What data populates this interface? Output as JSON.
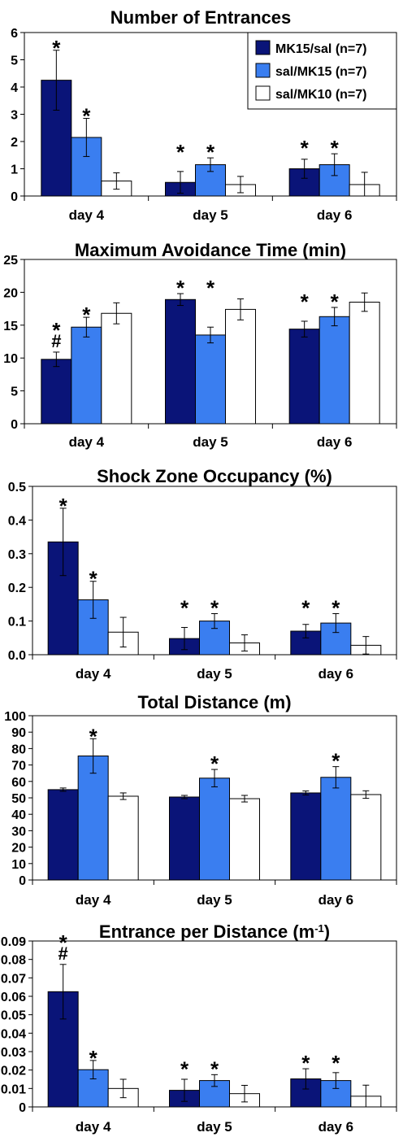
{
  "colors": {
    "MK15/sal": "#0a1478",
    "sal/MK15": "#3a7ef0",
    "sal/MK10": "#ffffff"
  },
  "legend": {
    "items": [
      {
        "label": "MK15/sal (n=7)",
        "color": "#0a1478"
      },
      {
        "label": "sal/MK15 (n=7)",
        "color": "#3a7ef0"
      },
      {
        "label": "sal/MK10 (n=7)",
        "color": "#ffffff"
      }
    ]
  },
  "chart_data": [
    {
      "type": "bar",
      "title": "Number of Entrances",
      "categories": [
        "day 4",
        "day 5",
        "day 6"
      ],
      "ylim": [
        0,
        6
      ],
      "yticks": [
        0,
        1,
        2,
        3,
        4,
        5,
        6
      ],
      "series": [
        {
          "name": "MK15/sal (n=7)",
          "values": [
            4.25,
            0.5,
            1.0
          ],
          "errors": [
            1.1,
            0.4,
            0.35
          ]
        },
        {
          "name": "sal/MK15 (n=7)",
          "values": [
            2.15,
            1.15,
            1.15
          ],
          "errors": [
            0.7,
            0.25,
            0.4
          ]
        },
        {
          "name": "sal/MK10 (n=7)",
          "values": [
            0.55,
            0.42,
            0.42
          ],
          "errors": [
            0.3,
            0.3,
            0.45
          ]
        }
      ],
      "annotations": [
        {
          "category": 0,
          "series": 0,
          "text": "*"
        },
        {
          "category": 0,
          "series": 1,
          "text": "*"
        },
        {
          "category": 1,
          "series": 0,
          "text": "*"
        },
        {
          "category": 1,
          "series": 1,
          "text": "*"
        },
        {
          "category": 2,
          "series": 0,
          "text": "*"
        },
        {
          "category": 2,
          "series": 1,
          "text": "*"
        }
      ],
      "grid": false,
      "legend": "top-right"
    },
    {
      "type": "bar",
      "title": "Maximum Avoidance Time (min)",
      "categories": [
        "day 4",
        "day 5",
        "day 6"
      ],
      "ylim": [
        0,
        25
      ],
      "yticks": [
        0,
        5,
        10,
        15,
        20,
        25
      ],
      "series": [
        {
          "name": "MK15/sal (n=7)",
          "values": [
            9.8,
            18.9,
            14.4
          ],
          "errors": [
            1.1,
            0.9,
            1.2
          ]
        },
        {
          "name": "sal/MK15 (n=7)",
          "values": [
            14.7,
            13.5,
            16.3
          ],
          "errors": [
            1.5,
            1.2,
            1.4
          ]
        },
        {
          "name": "sal/MK10 (n=7)",
          "values": [
            16.8,
            17.4,
            18.5
          ],
          "errors": [
            1.6,
            1.6,
            1.4
          ]
        }
      ],
      "annotations": [
        {
          "category": 0,
          "series": 0,
          "text": "*"
        },
        {
          "category": 0,
          "series": 0,
          "text": "#"
        },
        {
          "category": 0,
          "series": 1,
          "text": "*"
        },
        {
          "category": 1,
          "series": 0,
          "text": "*"
        },
        {
          "category": 1,
          "series": 1,
          "text": "*"
        },
        {
          "category": 2,
          "series": 0,
          "text": "*"
        },
        {
          "category": 2,
          "series": 1,
          "text": "*"
        }
      ],
      "grid": false
    },
    {
      "type": "bar",
      "title": "Shock Zone Occupancy (%)",
      "categories": [
        "day 4",
        "day 5",
        "day 6"
      ],
      "ylim": [
        0,
        0.5
      ],
      "yticks": [
        0,
        0.1,
        0.2,
        0.3,
        0.4,
        0.5
      ],
      "ytick_labels": [
        "0.0",
        "0.1",
        "0.2",
        "0.3",
        "0.4",
        "0.5"
      ],
      "series": [
        {
          "name": "MK15/sal (n=7)",
          "values": [
            0.335,
            0.048,
            0.07
          ],
          "errors": [
            0.1,
            0.033,
            0.02
          ]
        },
        {
          "name": "sal/MK15 (n=7)",
          "values": [
            0.163,
            0.1,
            0.094
          ],
          "errors": [
            0.055,
            0.022,
            0.028
          ]
        },
        {
          "name": "sal/MK10 (n=7)",
          "values": [
            0.067,
            0.035,
            0.028
          ],
          "errors": [
            0.044,
            0.024,
            0.026
          ]
        }
      ],
      "annotations": [
        {
          "category": 0,
          "series": 0,
          "text": "*"
        },
        {
          "category": 0,
          "series": 1,
          "text": "*"
        },
        {
          "category": 1,
          "series": 0,
          "text": "*"
        },
        {
          "category": 1,
          "series": 1,
          "text": "*"
        },
        {
          "category": 2,
          "series": 0,
          "text": "*"
        },
        {
          "category": 2,
          "series": 1,
          "text": "*"
        }
      ],
      "grid": false
    },
    {
      "type": "bar",
      "title": "Total Distance (m)",
      "categories": [
        "day 4",
        "day 5",
        "day 6"
      ],
      "ylim": [
        0,
        100
      ],
      "yticks": [
        0,
        10,
        20,
        30,
        40,
        50,
        60,
        70,
        80,
        90,
        100
      ],
      "series": [
        {
          "name": "MK15/sal (n=7)",
          "values": [
            55,
            50.5,
            53
          ],
          "errors": [
            1.0,
            1.0,
            1.2
          ]
        },
        {
          "name": "sal/MK15 (n=7)",
          "values": [
            75.5,
            62,
            62.5
          ],
          "errors": [
            10.5,
            5.3,
            6.5
          ]
        },
        {
          "name": "sal/MK10 (n=7)",
          "values": [
            51,
            49.5,
            52
          ],
          "errors": [
            2.0,
            2.0,
            2.3
          ]
        }
      ],
      "annotations": [
        {
          "category": 0,
          "series": 1,
          "text": "*"
        },
        {
          "category": 1,
          "series": 1,
          "text": "*"
        },
        {
          "category": 2,
          "series": 1,
          "text": "*"
        }
      ],
      "grid": false
    },
    {
      "type": "bar",
      "title": "Entrance per Distance (m",
      "title_sup": "-1",
      "title_end": ")",
      "categories": [
        "day 4",
        "day 5",
        "day 6"
      ],
      "ylim": [
        0,
        0.09
      ],
      "yticks": [
        0,
        0.01,
        0.02,
        0.03,
        0.04,
        0.05,
        0.06,
        0.07,
        0.08,
        0.09
      ],
      "ytick_labels": [
        "0",
        "0.01",
        "0.02",
        "0.03",
        "0.04",
        "0.05",
        "0.06",
        "0.07",
        "0.08",
        "0.09"
      ],
      "series": [
        {
          "name": "MK15/sal (n=7)",
          "values": [
            0.0625,
            0.009,
            0.0152
          ],
          "errors": [
            0.0148,
            0.006,
            0.0055
          ]
        },
        {
          "name": "sal/MK15 (n=7)",
          "values": [
            0.0202,
            0.0143,
            0.0143
          ],
          "errors": [
            0.005,
            0.0032,
            0.0043
          ]
        },
        {
          "name": "sal/MK10 (n=7)",
          "values": [
            0.01,
            0.0072,
            0.0058
          ],
          "errors": [
            0.005,
            0.0045,
            0.006
          ]
        }
      ],
      "annotations": [
        {
          "category": 0,
          "series": 0,
          "text": "*"
        },
        {
          "category": 0,
          "series": 0,
          "text": "#"
        },
        {
          "category": 0,
          "series": 1,
          "text": "*"
        },
        {
          "category": 1,
          "series": 0,
          "text": "*"
        },
        {
          "category": 1,
          "series": 1,
          "text": "*"
        },
        {
          "category": 2,
          "series": 0,
          "text": "*"
        },
        {
          "category": 2,
          "series": 1,
          "text": "*"
        }
      ],
      "grid": false
    }
  ]
}
